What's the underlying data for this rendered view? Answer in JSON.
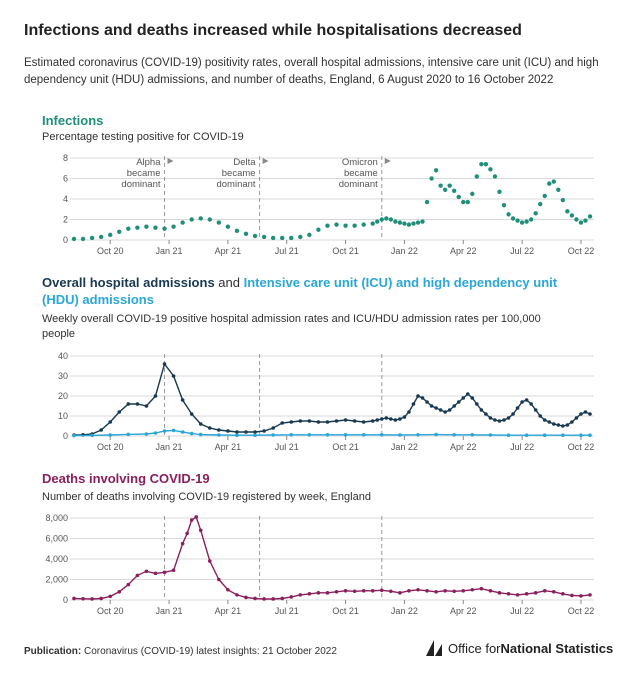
{
  "header": {
    "title": "Infections and deaths increased while hospitalisations decreased",
    "subtitle": "Estimated coronavirus (COVID-19) positivity rates, overall hospital admissions, intensive care unit (ICU) and high dependency unit (HDU) admissions, and number of deaths, England, 6 August 2020 to 16 October 2022"
  },
  "footer": {
    "publication_label": "Publication:",
    "publication_text": "Coronavirus (COVID-19) latest insights: 21 October 2022",
    "logo_text_pre": "Office for ",
    "logo_text_bold": "National Statistics"
  },
  "colors": {
    "infections": "#1f8f7a",
    "hospital": "#18394f",
    "icu": "#2aa6d8",
    "deaths": "#8b1f5d",
    "grid": "#d9d9d9",
    "vline": "#9a9a9a"
  },
  "x_ticks": [
    "Oct 20",
    "Jan 21",
    "Apr 21",
    "Jul 21",
    "Oct 21",
    "Jan 22",
    "Apr 22",
    "Jul 22",
    "Oct 22"
  ],
  "variant_lines": [
    {
      "label_lines": [
        "Alpha",
        "became",
        "dominant"
      ],
      "x": 20
    },
    {
      "label_lines": [
        "Delta",
        "became",
        "dominant"
      ],
      "x": 41
    },
    {
      "label_lines": [
        "Omicron",
        "became",
        "dominant"
      ],
      "x": 68
    }
  ],
  "chart_data": [
    {
      "type": "line",
      "title": "Infections",
      "subtitle": "Percentage testing positive for COVID-19",
      "ylim": [
        0,
        8
      ],
      "yticks": [
        0,
        2,
        4,
        6,
        8
      ],
      "x_unit": "weeks since 6 Aug 2020",
      "series": [
        {
          "color_key": "infections",
          "x": [
            0,
            2,
            4,
            6,
            8,
            10,
            12,
            14,
            16,
            18,
            20,
            22,
            24,
            26,
            28,
            30,
            32,
            34,
            36,
            38,
            40,
            42,
            44,
            46,
            48,
            50,
            52,
            54,
            56,
            58,
            60,
            62,
            64,
            66,
            67,
            68,
            69,
            70,
            71,
            72,
            73,
            74,
            75,
            76,
            77,
            78,
            79,
            80,
            81,
            82,
            83,
            84,
            85,
            86,
            87,
            88,
            89,
            90,
            91,
            92,
            93,
            94,
            95,
            96,
            97,
            98,
            99,
            100,
            101,
            102,
            103,
            104,
            105,
            106,
            107,
            108,
            109,
            110,
            111,
            112,
            113,
            114
          ],
          "values": [
            0.1,
            0.1,
            0.2,
            0.3,
            0.5,
            0.8,
            1.1,
            1.2,
            1.3,
            1.2,
            1.1,
            1.3,
            1.7,
            2.0,
            2.1,
            2.0,
            1.7,
            1.3,
            0.9,
            0.6,
            0.4,
            0.3,
            0.2,
            0.2,
            0.2,
            0.3,
            0.5,
            1.0,
            1.4,
            1.5,
            1.4,
            1.4,
            1.5,
            1.6,
            1.8,
            2.0,
            2.1,
            2.0,
            1.8,
            1.7,
            1.6,
            1.5,
            1.6,
            1.7,
            1.8,
            3.7,
            6.0,
            6.8,
            5.3,
            4.9,
            5.3,
            4.8,
            4.2,
            3.7,
            3.7,
            4.5,
            6.2,
            7.4,
            7.4,
            6.9,
            6.2,
            4.7,
            3.4,
            2.5,
            2.1,
            1.9,
            1.7,
            1.8,
            2.0,
            2.6,
            3.5,
            4.3,
            5.5,
            5.7,
            4.9,
            3.9,
            2.8,
            2.4,
            2.0,
            1.7,
            1.9,
            2.3
          ]
        }
      ]
    },
    {
      "type": "line",
      "title_parts": [
        "Overall hospital admissions",
        " and ",
        "Intensive care unit (ICU) and high dependency unit (HDU) admissions"
      ],
      "subtitle": "Weekly overall COVID-19 positive hospital admission rates and ICU/HDU admission rates per 100,000 people",
      "ylim": [
        0,
        40
      ],
      "yticks": [
        0,
        10,
        20,
        30,
        40
      ],
      "series": [
        {
          "color_key": "hospital",
          "x": [
            0,
            2,
            4,
            6,
            8,
            10,
            12,
            14,
            16,
            18,
            20,
            22,
            24,
            26,
            28,
            30,
            32,
            34,
            36,
            38,
            40,
            42,
            44,
            46,
            48,
            50,
            52,
            54,
            56,
            58,
            60,
            62,
            64,
            66,
            67,
            68,
            69,
            70,
            71,
            72,
            73,
            74,
            75,
            76,
            77,
            78,
            79,
            80,
            81,
            82,
            83,
            84,
            85,
            86,
            87,
            88,
            89,
            90,
            91,
            92,
            93,
            94,
            95,
            96,
            97,
            98,
            99,
            100,
            101,
            102,
            103,
            104,
            105,
            106,
            107,
            108,
            109,
            110,
            111,
            112,
            113,
            114
          ],
          "values": [
            0.5,
            0.6,
            1,
            3,
            7,
            12,
            16,
            16,
            15,
            20,
            36,
            30,
            18,
            11,
            6,
            4,
            3,
            2.5,
            2,
            2,
            2,
            2.5,
            4,
            6.5,
            7,
            7.5,
            7.5,
            7,
            7,
            7.5,
            8,
            7.5,
            7,
            7.5,
            8,
            8.5,
            9,
            8.5,
            8,
            8.5,
            9.5,
            12,
            16,
            20,
            19,
            17,
            15,
            14,
            13,
            12,
            13,
            15,
            17,
            19,
            21,
            19,
            16,
            13,
            11,
            9,
            8,
            7.5,
            8,
            9,
            11,
            14,
            17,
            18,
            16,
            13,
            10,
            8,
            7,
            6,
            5.5,
            5,
            5.5,
            7,
            9,
            11,
            12,
            11
          ]
        },
        {
          "color_key": "icu",
          "x": [
            0,
            4,
            8,
            12,
            16,
            18,
            20,
            22,
            24,
            26,
            28,
            32,
            36,
            40,
            44,
            48,
            52,
            56,
            60,
            64,
            68,
            72,
            76,
            80,
            84,
            88,
            92,
            96,
            100,
            104,
            108,
            112,
            114
          ],
          "values": [
            0.2,
            0.3,
            0.5,
            0.8,
            1,
            1.5,
            2.5,
            2.8,
            2,
            1.2,
            0.7,
            0.5,
            0.4,
            0.4,
            0.5,
            0.6,
            0.6,
            0.6,
            0.6,
            0.6,
            0.6,
            0.5,
            0.6,
            0.7,
            0.6,
            0.6,
            0.5,
            0.4,
            0.4,
            0.4,
            0.4,
            0.4,
            0.4
          ]
        }
      ]
    },
    {
      "type": "line",
      "title": "Deaths involving COVID-19",
      "subtitle": "Number of deaths involving COVID-19 registered by week, England",
      "ylim": [
        0,
        8000
      ],
      "yticks": [
        0,
        2000,
        4000,
        6000,
        8000
      ],
      "ytick_labels": [
        "0",
        "2,000",
        "4,000",
        "6,000",
        "8,000"
      ],
      "series": [
        {
          "color_key": "deaths",
          "x": [
            0,
            2,
            4,
            6,
            8,
            10,
            12,
            14,
            16,
            18,
            20,
            22,
            24,
            25,
            26,
            27,
            28,
            30,
            32,
            34,
            36,
            38,
            40,
            42,
            44,
            46,
            48,
            50,
            52,
            54,
            56,
            58,
            60,
            62,
            64,
            66,
            68,
            70,
            72,
            74,
            76,
            78,
            80,
            82,
            84,
            86,
            88,
            90,
            92,
            94,
            96,
            98,
            100,
            102,
            104,
            106,
            108,
            110,
            112,
            114
          ],
          "values": [
            150,
            120,
            100,
            150,
            350,
            800,
            1500,
            2400,
            2800,
            2600,
            2700,
            2900,
            5500,
            6500,
            7800,
            8100,
            6800,
            3800,
            2000,
            1000,
            500,
            250,
            150,
            100,
            100,
            150,
            300,
            500,
            600,
            700,
            700,
            800,
            900,
            850,
            900,
            900,
            950,
            850,
            700,
            900,
            1000,
            900,
            800,
            900,
            850,
            900,
            1000,
            1100,
            900,
            700,
            600,
            500,
            600,
            700,
            900,
            800,
            600,
            450,
            400,
            500
          ]
        }
      ]
    }
  ]
}
